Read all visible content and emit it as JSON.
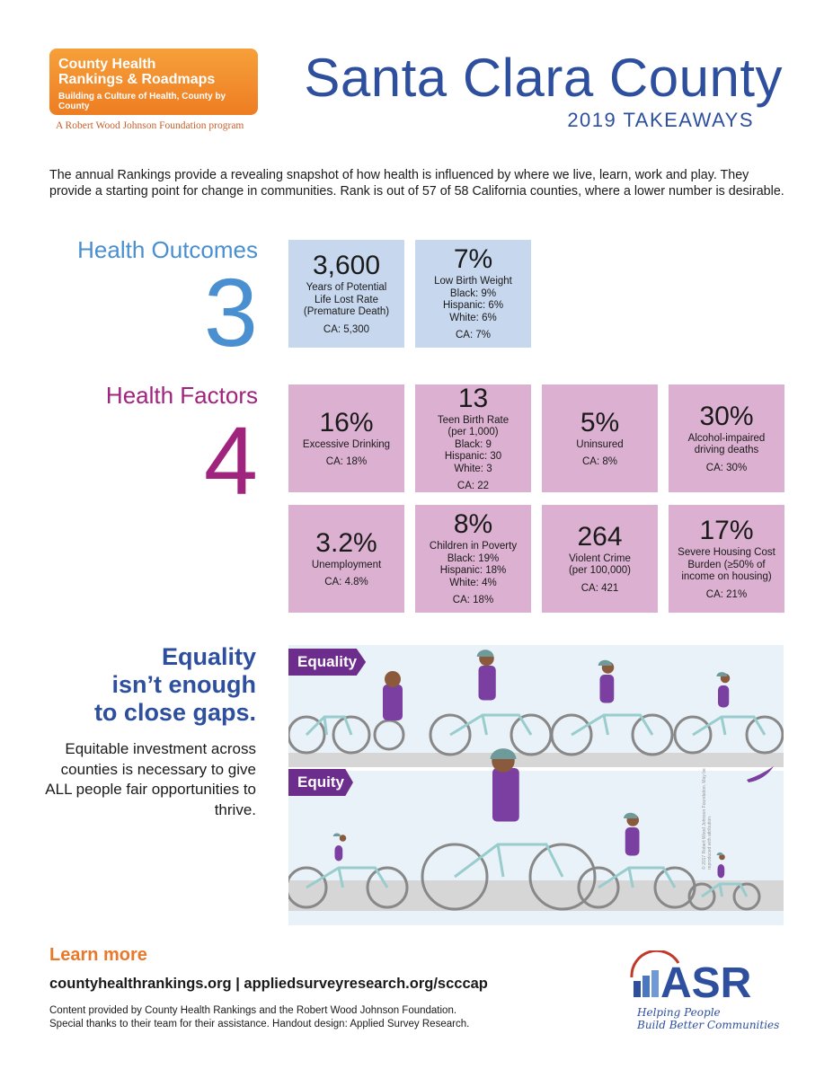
{
  "logo": {
    "line1": "County Health",
    "line2": "Rankings & Roadmaps",
    "line3": "Building a Culture of Health, County by County",
    "sub": "A Robert Wood Johnson Foundation program"
  },
  "header": {
    "title": "Santa Clara County",
    "subtitle": "2019 TAKEAWAYS"
  },
  "intro": "The annual Rankings provide a revealing snapshot of how health is influenced by where we live, learn, work and play. They provide a starting point for change in communities. Rank is out of 57 of 58 California counties, where a lower number is desirable.",
  "outcomes": {
    "label": "Health Outcomes",
    "rank": "3",
    "tiles": [
      {
        "value": "3,600",
        "lines": [
          "Years of Potential",
          "Life Lost Rate",
          "(Premature Death)"
        ],
        "ca": "CA: 5,300"
      },
      {
        "value": "7%",
        "lines": [
          "Low Birth Weight",
          "Black: 9%",
          "Hispanic: 6%",
          "White: 6%"
        ],
        "ca": "CA: 7%"
      }
    ]
  },
  "factors": {
    "label": "Health Factors",
    "rank": "4",
    "tiles": [
      {
        "value": "16%",
        "lines": [
          "Excessive Drinking"
        ],
        "ca": "CA: 18%"
      },
      {
        "value": "13",
        "lines": [
          "Teen Birth Rate",
          "(per 1,000)",
          "Black: 9",
          "Hispanic: 30",
          "White: 3"
        ],
        "ca": "CA: 22"
      },
      {
        "value": "5%",
        "lines": [
          "Uninsured"
        ],
        "ca": "CA: 8%"
      },
      {
        "value": "30%",
        "lines": [
          "Alcohol-impaired",
          "driving deaths"
        ],
        "ca": "CA: 30%"
      },
      {
        "value": "3.2%",
        "lines": [
          "Unemployment"
        ],
        "ca": "CA: 4.8%"
      },
      {
        "value": "8%",
        "lines": [
          "Children in Poverty",
          "Black: 19%",
          "Hispanic: 18%",
          "White: 4%"
        ],
        "ca": "CA: 18%"
      },
      {
        "value": "264",
        "lines": [
          "Violent Crime",
          "(per 100,000)"
        ],
        "ca": "CA: 421"
      },
      {
        "value": "17%",
        "lines": [
          "Severe Housing Cost",
          "Burden (≥50% of",
          "income on housing)"
        ],
        "ca": "CA: 21%"
      }
    ]
  },
  "equality": {
    "heading": [
      "Equality",
      "isn’t enough",
      "to close gaps."
    ],
    "body": "Equitable investment across counties is necessary to give ALL people fair opportunities to thrive.",
    "tag_equality": "Equality",
    "tag_equity": "Equity",
    "copyright": "© 2017 Robert Wood Johnson Foundation. May be reproduced with attribution."
  },
  "footer": {
    "learn_more": "Learn more",
    "links": "countyhealthrankings.org | appliedsurveyresearch.org/scccap",
    "credits1": "Content provided  by County Health Rankings and the Robert Wood Johnson Foundation.",
    "credits2": "Special thanks to their team for their assistance. Handout design: Applied Survey Research."
  },
  "asr": {
    "name": "ASR",
    "tag1": "Helping People",
    "tag2": "Build Better Communities"
  },
  "colors": {
    "blue": "#2e4f9e",
    "outcomes": "#4a8fd0",
    "factors": "#a0237e",
    "orange": "#e8792a",
    "tile_blue": "#c6d7ee",
    "tile_pink": "#dbb0d0",
    "purple": "#6c2d8c"
  }
}
